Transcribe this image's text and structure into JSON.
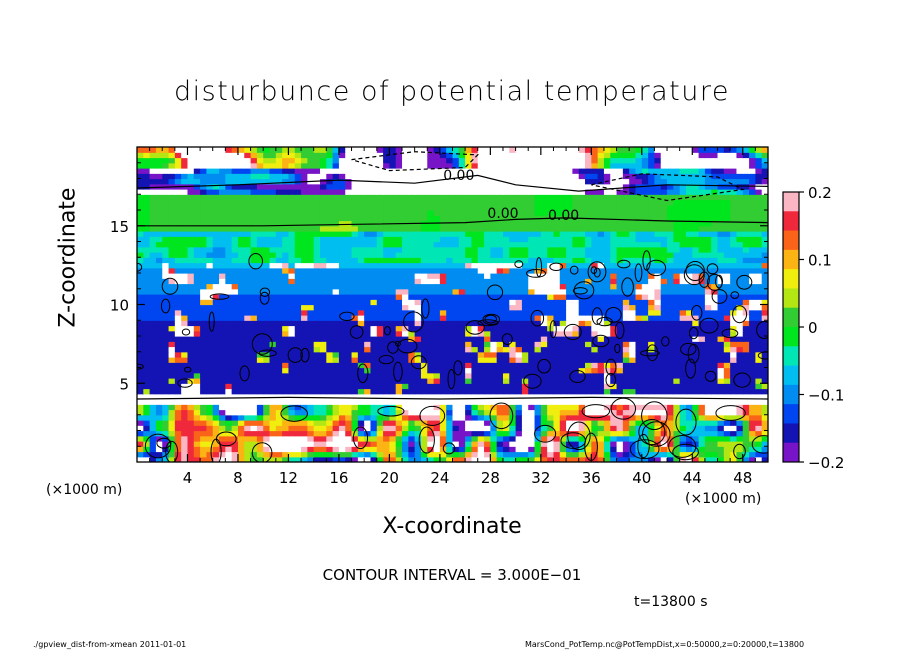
{
  "chart_data": {
    "type": "heatmap",
    "title": "disturbunce of potential temperature",
    "xlabel": "X-coordinate",
    "ylabel": "Z-coordinate",
    "x_unit_left": "(×1000 m)",
    "x_unit_right": "(×1000 m)",
    "xlim": [
      0,
      50
    ],
    "ylim": [
      0,
      20
    ],
    "x_ticks": [
      "4",
      "8",
      "12",
      "16",
      "20",
      "24",
      "28",
      "32",
      "36",
      "40",
      "44",
      "48"
    ],
    "x_tick_values": [
      4,
      8,
      12,
      16,
      20,
      24,
      28,
      32,
      36,
      40,
      44,
      48
    ],
    "y_ticks": [
      "5",
      "10",
      "15"
    ],
    "y_tick_values": [
      5,
      10,
      15
    ],
    "colorbar": {
      "min": -0.2,
      "max": 0.2,
      "ticks": [
        "0.2",
        "0.1",
        "0",
        "−0.1",
        "−0.2"
      ],
      "tick_values": [
        0.2,
        0.1,
        0,
        -0.1,
        -0.2
      ],
      "colors": [
        "#fbb6c4",
        "#f0283c",
        "#fa6418",
        "#fcb414",
        "#f0ee0e",
        "#b4e614",
        "#32cd32",
        "#00e61e",
        "#00e6b4",
        "#00bef0",
        "#008cf0",
        "#0046f0",
        "#1414b4",
        "#7814c8"
      ]
    },
    "contour_labels": [
      "0.00",
      "0.00",
      "0.00"
    ],
    "contour_interval_text": "CONTOUR INTERVAL = 3.000E−01",
    "time_text": "t=13800 s",
    "grid": false
  },
  "footer": {
    "left": "./gpview_dist-from-xmean   2011-01-01",
    "right": "MarsCond_PotTemp.nc@PotTempDist,x=0:50000,z=0:20000,t=13800"
  }
}
